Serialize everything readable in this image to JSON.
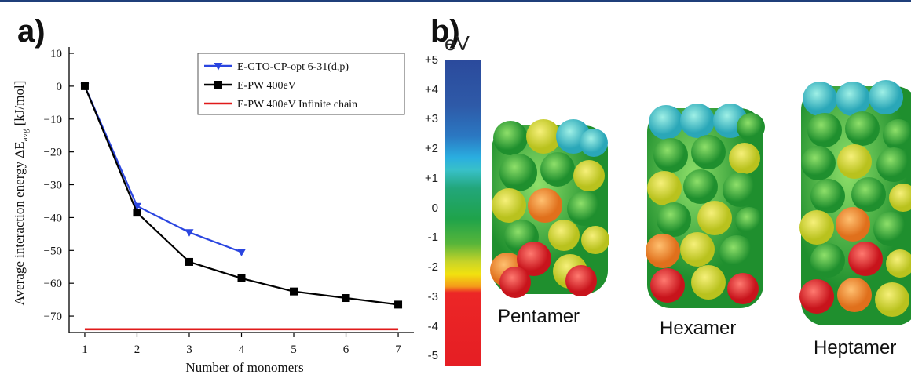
{
  "panels": {
    "a": "a)",
    "b": "b)"
  },
  "chart_data": {
    "type": "line",
    "xlabel": "Number of monomers",
    "ylabel": "Average interaction energy ΔE",
    "ylabel_sub": "avg",
    "ylabel_unit": "[kJ/mol]",
    "xlim": [
      0.7,
      7.3
    ],
    "ylim": [
      -75,
      10
    ],
    "x_ticks": [
      1,
      2,
      3,
      4,
      5,
      6,
      7
    ],
    "y_ticks": [
      10,
      0,
      -10,
      -20,
      -30,
      -40,
      -50,
      -60,
      -70
    ],
    "legend_position": "top-right",
    "grid": false,
    "series": [
      {
        "name": "E-GTO-CP-opt 6-31(d,p)",
        "color": "#2a45e0",
        "marker": "triangle-down",
        "x": [
          1,
          2,
          3,
          4
        ],
        "y": [
          0,
          -36.5,
          -44.5,
          -50.5
        ]
      },
      {
        "name": "E-PW 400eV",
        "color": "#000000",
        "marker": "square",
        "x": [
          1,
          2,
          3,
          4,
          5,
          6,
          7
        ],
        "y": [
          0,
          -38.5,
          -53.5,
          -58.5,
          -62.5,
          -64.5,
          -66.5
        ]
      },
      {
        "name": "E-PW 400eV Infinite chain",
        "color": "#e01a1a",
        "marker": "none",
        "x": [
          1,
          7
        ],
        "y": [
          -74,
          -74
        ]
      }
    ]
  },
  "colorbar": {
    "unit": "eV",
    "ticks": [
      "+5",
      "+4",
      "+3",
      "+2",
      "+1",
      "0",
      "-1",
      "-2",
      "-3",
      "-4",
      "-5"
    ],
    "colors": [
      "#2b4a9c",
      "#2aaee0",
      "#1fa34a",
      "#f2e20f",
      "#e51e24"
    ]
  },
  "molecules": [
    {
      "label": "Pentamer"
    },
    {
      "label": "Hexamer"
    },
    {
      "label": "Heptamer"
    }
  ]
}
